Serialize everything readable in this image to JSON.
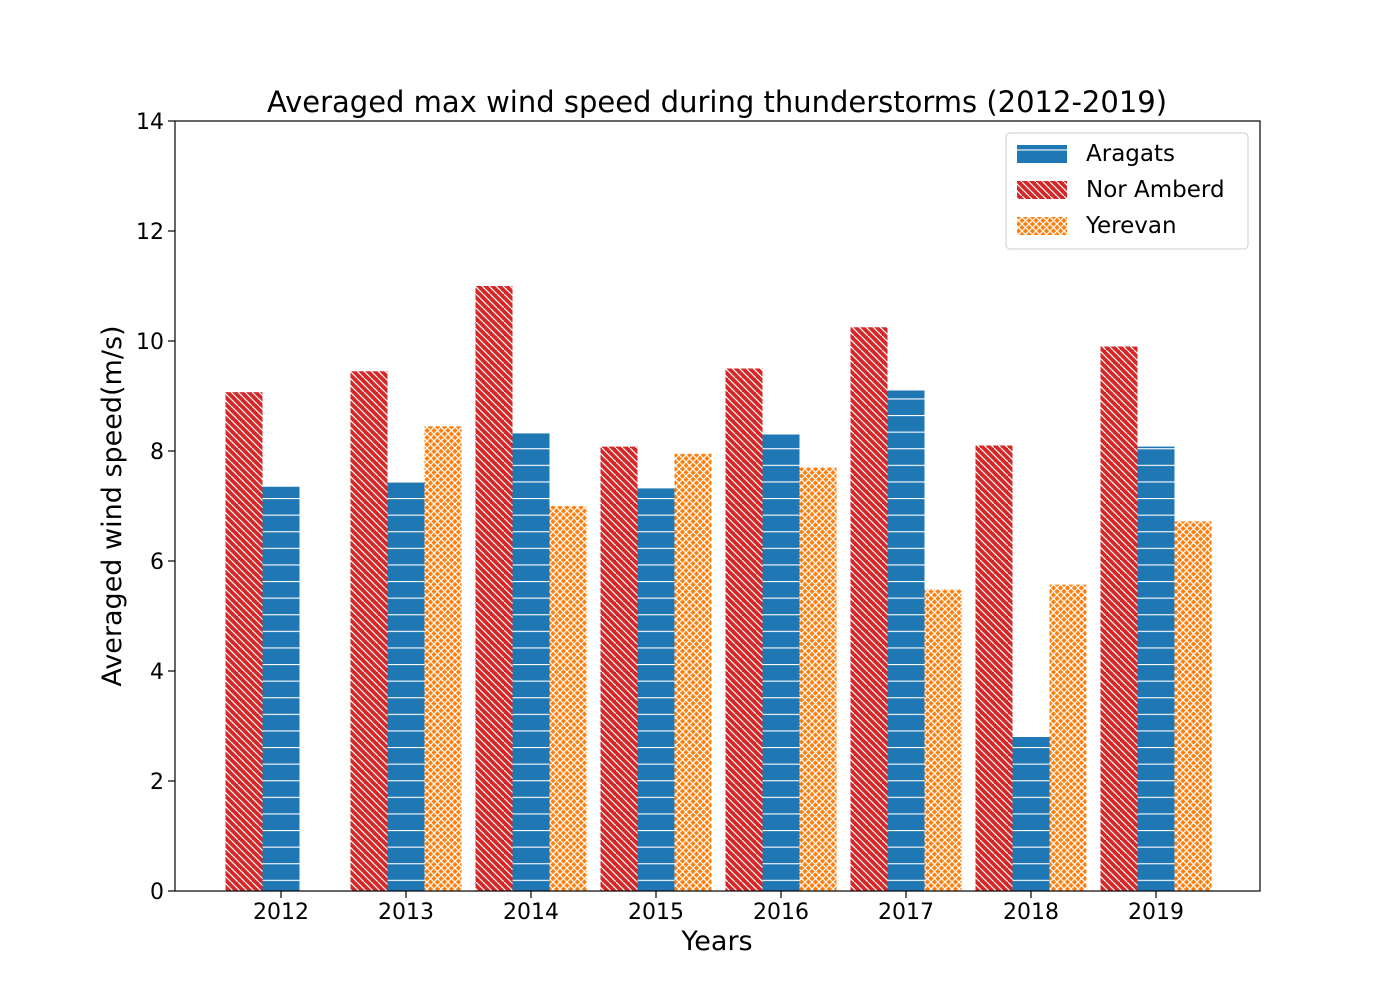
{
  "chart_data": {
    "type": "bar",
    "title": "Averaged max wind speed during thunderstorms (2012-2019)",
    "xlabel": "Years",
    "ylabel": "Averaged wind speed(m/s)",
    "ylim": [
      0,
      14
    ],
    "yticks": [
      0,
      2,
      4,
      6,
      8,
      10,
      12,
      14
    ],
    "categories": [
      "2012",
      "2013",
      "2014",
      "2015",
      "2016",
      "2017",
      "2018",
      "2019"
    ],
    "bar_order": [
      "Nor Amberd",
      "Aragats",
      "Yerevan"
    ],
    "series": [
      {
        "name": "Aragats",
        "color": "#1f77b4",
        "hatch": "horizontal",
        "values": [
          7.35,
          7.43,
          8.32,
          7.32,
          8.3,
          9.1,
          2.8,
          8.08
        ]
      },
      {
        "name": "Nor Amberd",
        "color": "#d62728",
        "hatch": "diagonal",
        "values": [
          9.07,
          9.45,
          11.0,
          8.08,
          9.5,
          10.25,
          8.1,
          9.9
        ]
      },
      {
        "name": "Yerevan",
        "color": "#ff7f0e",
        "hatch": "cross",
        "values": [
          null,
          8.45,
          7.0,
          7.95,
          7.7,
          5.48,
          5.57,
          6.72
        ]
      }
    ],
    "legend": {
      "position": "top-right",
      "entries": [
        "Aragats",
        "Nor Amberd",
        "Yerevan"
      ]
    },
    "grid": false
  }
}
